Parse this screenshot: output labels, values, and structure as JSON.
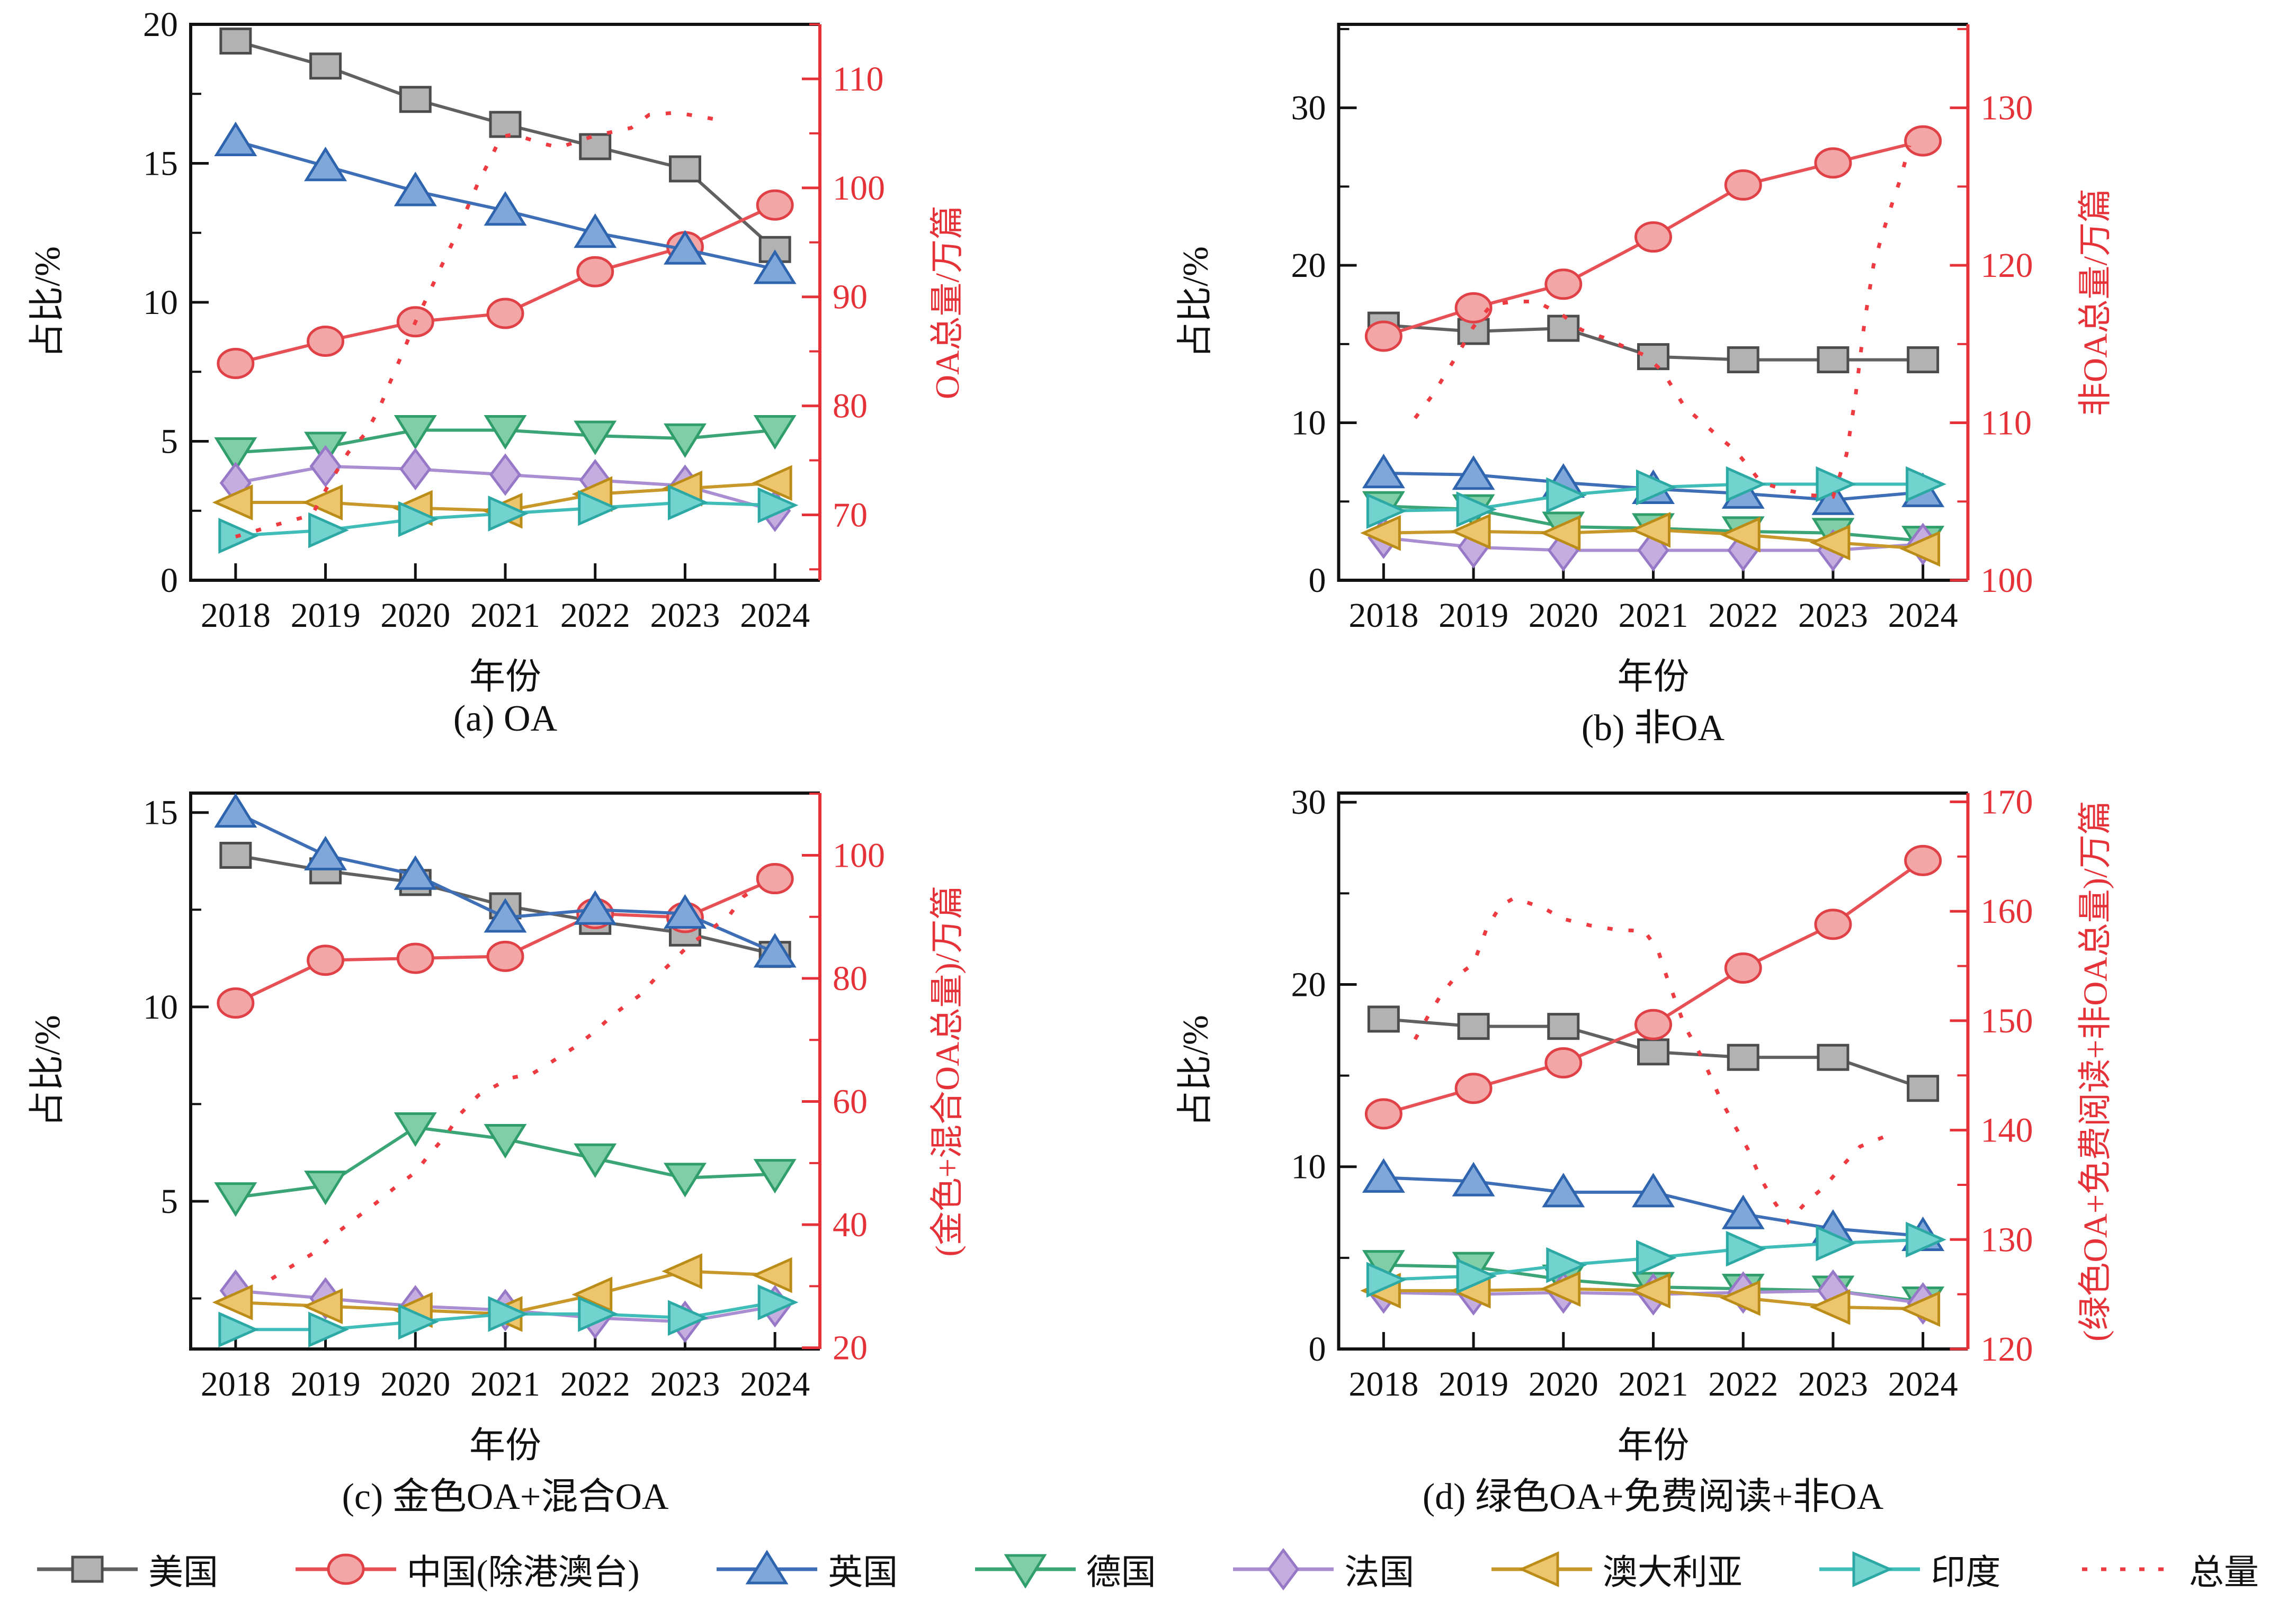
{
  "figure": {
    "background": "#ffffff"
  },
  "axis_common": {
    "x_label": "年份",
    "y_left_label": "占比/%",
    "x_ticks": [
      2018,
      2019,
      2020,
      2021,
      2022,
      2023,
      2024
    ],
    "xlim": [
      2017.5,
      2024.5
    ],
    "tick_color": "#111111",
    "right_axis_color": "#e53238"
  },
  "legend": {
    "position": "bottom",
    "items": [
      {
        "key": "usa",
        "label": "美国"
      },
      {
        "key": "china",
        "label": "中国(除港澳台)"
      },
      {
        "key": "uk",
        "label": "英国"
      },
      {
        "key": "germany",
        "label": "德国"
      },
      {
        "key": "france",
        "label": "法国"
      },
      {
        "key": "australia",
        "label": "澳大利亚"
      },
      {
        "key": "india",
        "label": "印度"
      },
      {
        "key": "total",
        "label": "总量"
      }
    ]
  },
  "styles": {
    "usa": {
      "marker": "square",
      "line": "#616161",
      "fill": "#b2b2b2",
      "edge": "#4c4c4c"
    },
    "china": {
      "marker": "circle",
      "line": "#e75055",
      "fill": "#f3a6a6",
      "edge": "#e04146"
    },
    "uk": {
      "marker": "triangle-up",
      "line": "#3e6eb5",
      "fill": "#80a7d9",
      "edge": "#2e64ae"
    },
    "germany": {
      "marker": "triangle-down",
      "line": "#3ca576",
      "fill": "#80cea8",
      "edge": "#2f9e6b"
    },
    "france": {
      "marker": "diamond",
      "line": "#a98fd1",
      "fill": "#c5addf",
      "edge": "#9678c7"
    },
    "australia": {
      "marker": "triangle-left",
      "line": "#c8982a",
      "fill": "#edc56d",
      "edge": "#bb8c17"
    },
    "india": {
      "marker": "triangle-right",
      "line": "#40bdb9",
      "fill": "#72d2ce",
      "edge": "#2ca9a5"
    },
    "total": {
      "marker": "none",
      "line": "#ee3b41",
      "dash": "dotted"
    }
  },
  "chart_data": [
    {
      "id": "a",
      "type": "line",
      "caption": "(a) OA",
      "xlabel": "年份",
      "ylabel_left": "占比/%",
      "ylabel_right": "OA总量/万篇",
      "x": [
        2018,
        2019,
        2020,
        2021,
        2022,
        2023,
        2024
      ],
      "ylim_left": [
        0,
        20
      ],
      "yticks_left": [
        0,
        5,
        10,
        15,
        20
      ],
      "yminor_left": 2.5,
      "ylim_right": [
        64,
        115
      ],
      "yticks_right": [
        70,
        80,
        90,
        100,
        110
      ],
      "yminor_right": 5,
      "grid": false,
      "series": [
        {
          "key": "usa",
          "name": "美国",
          "values": [
            19.4,
            18.5,
            17.3,
            16.4,
            15.6,
            14.8,
            11.9
          ]
        },
        {
          "key": "china",
          "name": "中国(除港澳台)",
          "values": [
            7.8,
            8.6,
            9.3,
            9.6,
            11.1,
            12.0,
            13.5
          ]
        },
        {
          "key": "uk",
          "name": "英国",
          "values": [
            15.8,
            14.9,
            14.0,
            13.3,
            12.5,
            11.9,
            11.2
          ]
        },
        {
          "key": "germany",
          "name": "德国",
          "values": [
            4.6,
            4.8,
            5.4,
            5.4,
            5.2,
            5.1,
            5.4
          ]
        },
        {
          "key": "france",
          "name": "法国",
          "values": [
            3.5,
            4.1,
            4.0,
            3.8,
            3.6,
            3.4,
            2.5
          ]
        },
        {
          "key": "australia",
          "name": "澳大利亚",
          "values": [
            2.8,
            2.8,
            2.6,
            2.5,
            3.1,
            3.3,
            3.5
          ]
        },
        {
          "key": "india",
          "name": "印度",
          "values": [
            1.6,
            1.8,
            2.2,
            2.4,
            2.6,
            2.8,
            2.7
          ]
        }
      ],
      "total": {
        "key": "total",
        "name": "总量",
        "axis": "right",
        "points": [
          [
            2018.0,
            68.0
          ],
          [
            2018.5,
            69.2
          ],
          [
            2018.85,
            70.0
          ],
          [
            2019.05,
            73.0
          ],
          [
            2019.25,
            75.7
          ],
          [
            2019.45,
            77.5
          ],
          [
            2019.6,
            79.8
          ],
          [
            2019.72,
            82.2
          ],
          [
            2019.86,
            84.9
          ],
          [
            2020.0,
            87.7
          ],
          [
            2020.16,
            90.5
          ],
          [
            2020.3,
            93.0
          ],
          [
            2020.45,
            95.6
          ],
          [
            2020.58,
            98.2
          ],
          [
            2020.7,
            100.5
          ],
          [
            2020.85,
            102.9
          ],
          [
            2020.95,
            104.7
          ],
          [
            2021.1,
            104.9
          ],
          [
            2021.4,
            104.1
          ],
          [
            2021.6,
            103.7
          ],
          [
            2022.0,
            104.8
          ],
          [
            2022.4,
            105.5
          ],
          [
            2022.6,
            106.7
          ],
          [
            2022.9,
            106.9
          ],
          [
            2023.2,
            106.5
          ],
          [
            2023.45,
            106.1
          ]
        ]
      }
    },
    {
      "id": "b",
      "type": "line",
      "caption": "(b) 非OA",
      "xlabel": "年份",
      "ylabel_left": "占比/%",
      "ylabel_right": "非OA总量/万篇",
      "x": [
        2018,
        2019,
        2020,
        2021,
        2022,
        2023,
        2024
      ],
      "ylim_left": [
        0,
        35.3
      ],
      "yticks_left": [
        0,
        10,
        20,
        30
      ],
      "yminor_left": 5,
      "ylim_right": [
        100,
        135.3
      ],
      "yticks_right": [
        100,
        110,
        120,
        130
      ],
      "yminor_right": 5,
      "grid": false,
      "series": [
        {
          "key": "usa",
          "name": "美国",
          "values": [
            16.2,
            15.8,
            16.0,
            14.2,
            14.0,
            14.0,
            14.0
          ]
        },
        {
          "key": "china",
          "name": "中国(除港澳台)",
          "values": [
            15.5,
            17.3,
            18.8,
            21.8,
            25.1,
            26.5,
            27.9
          ]
        },
        {
          "key": "uk",
          "name": "英国",
          "values": [
            6.8,
            6.7,
            6.2,
            5.8,
            5.5,
            5.1,
            5.6
          ]
        },
        {
          "key": "germany",
          "name": "德国",
          "values": [
            4.7,
            4.5,
            3.4,
            3.3,
            3.1,
            3.0,
            2.5
          ]
        },
        {
          "key": "france",
          "name": "法国",
          "values": [
            2.7,
            2.1,
            1.9,
            1.9,
            1.9,
            1.9,
            2.3
          ]
        },
        {
          "key": "australia",
          "name": "澳大利亚",
          "values": [
            3.0,
            3.1,
            3.0,
            3.2,
            2.9,
            2.4,
            2.0
          ]
        },
        {
          "key": "india",
          "name": "印度",
          "values": [
            4.4,
            4.5,
            5.4,
            5.9,
            6.1,
            6.1,
            6.1
          ]
        }
      ],
      "total": {
        "key": "total",
        "name": "总量",
        "axis": "right",
        "points": [
          [
            2018.35,
            110.3
          ],
          [
            2018.55,
            111.8
          ],
          [
            2018.7,
            113.2
          ],
          [
            2018.85,
            114.6
          ],
          [
            2019.0,
            116.1
          ],
          [
            2019.2,
            117.5
          ],
          [
            2019.45,
            117.7
          ],
          [
            2019.7,
            117.7
          ],
          [
            2020.0,
            116.8
          ],
          [
            2020.2,
            115.9
          ],
          [
            2020.45,
            115.4
          ],
          [
            2020.65,
            114.9
          ],
          [
            2020.9,
            114.3
          ],
          [
            2021.1,
            113.3
          ],
          [
            2021.35,
            111.0
          ],
          [
            2021.55,
            110.0
          ],
          [
            2021.75,
            109.0
          ],
          [
            2021.9,
            108.3
          ],
          [
            2022.05,
            107.3
          ],
          [
            2022.2,
            106.2
          ],
          [
            2022.5,
            105.7
          ],
          [
            2022.75,
            105.4
          ],
          [
            2023.0,
            105.3
          ],
          [
            2023.15,
            108.0
          ],
          [
            2023.25,
            111.7
          ],
          [
            2023.35,
            116.4
          ],
          [
            2023.45,
            120.0
          ],
          [
            2023.55,
            122.0
          ],
          [
            2023.65,
            123.8
          ],
          [
            2023.75,
            125.5
          ],
          [
            2023.85,
            127.6
          ]
        ]
      }
    },
    {
      "id": "c",
      "type": "line",
      "caption": "(c) 金色OA+混合OA",
      "xlabel": "年份",
      "ylabel_left": "占比/%",
      "ylabel_right": "(金色+混合OA总量)/万篇",
      "x": [
        2018,
        2019,
        2020,
        2021,
        2022,
        2023,
        2024
      ],
      "ylim_left": [
        1.2,
        15.5
      ],
      "yticks_left": [
        5,
        10,
        15
      ],
      "yminor_left": 2.5,
      "ylim_right": [
        19.8,
        110.1
      ],
      "yticks_right": [
        20,
        40,
        60,
        80,
        100
      ],
      "yminor_right": 10,
      "grid": false,
      "series": [
        {
          "key": "usa",
          "name": "美国",
          "values": [
            13.9,
            13.5,
            13.2,
            12.6,
            12.2,
            11.9,
            11.35
          ]
        },
        {
          "key": "china",
          "name": "中国(除港澳台)",
          "values": [
            10.1,
            11.2,
            11.25,
            11.3,
            12.4,
            12.3,
            13.3
          ]
        },
        {
          "key": "uk",
          "name": "英国",
          "values": [
            15.0,
            13.9,
            13.4,
            12.3,
            12.5,
            12.4,
            11.4
          ]
        },
        {
          "key": "germany",
          "name": "德国",
          "values": [
            5.1,
            5.4,
            6.9,
            6.6,
            6.1,
            5.6,
            5.7
          ]
        },
        {
          "key": "france",
          "name": "法国",
          "values": [
            2.7,
            2.5,
            2.3,
            2.2,
            2.0,
            1.9,
            2.3
          ]
        },
        {
          "key": "australia",
          "name": "澳大利亚",
          "values": [
            2.4,
            2.3,
            2.2,
            2.1,
            2.6,
            3.2,
            3.1
          ]
        },
        {
          "key": "india",
          "name": "印度",
          "values": [
            1.7,
            1.7,
            1.9,
            2.1,
            2.1,
            2.0,
            2.4
          ]
        }
      ],
      "total": {
        "key": "total",
        "name": "总量",
        "axis": "right",
        "points": [
          [
            2018.4,
            31.2
          ],
          [
            2018.63,
            33.3
          ],
          [
            2018.87,
            35.4
          ],
          [
            2019.0,
            37.2
          ],
          [
            2019.12,
            38.6
          ],
          [
            2019.37,
            41.4
          ],
          [
            2019.57,
            43.6
          ],
          [
            2019.77,
            46.0
          ],
          [
            2020.0,
            48.5
          ],
          [
            2020.15,
            51.3
          ],
          [
            2020.34,
            54.5
          ],
          [
            2020.5,
            58.0
          ],
          [
            2020.7,
            61.0
          ],
          [
            2021.05,
            63.8
          ],
          [
            2021.3,
            64.5
          ],
          [
            2021.5,
            66.3
          ],
          [
            2021.77,
            68.8
          ],
          [
            2022.0,
            71.4
          ],
          [
            2022.2,
            74.1
          ],
          [
            2022.5,
            77.3
          ],
          [
            2022.7,
            80.5
          ],
          [
            2022.9,
            83.3
          ],
          [
            2023.05,
            85.5
          ],
          [
            2023.26,
            87.6
          ],
          [
            2023.5,
            90.4
          ],
          [
            2023.65,
            93.3
          ],
          [
            2023.8,
            94.7
          ]
        ]
      }
    },
    {
      "id": "d",
      "type": "line",
      "caption": "(d) 绿色OA+免费阅读+非OA",
      "xlabel": "年份",
      "ylabel_left": "占比/%",
      "ylabel_right": "(绿色OA+免费阅读+非OA总量)/万篇",
      "x": [
        2018,
        2019,
        2020,
        2021,
        2022,
        2023,
        2024
      ],
      "ylim_left": [
        0,
        30.5
      ],
      "yticks_left": [
        0,
        10,
        20,
        30
      ],
      "yminor_left": 5,
      "ylim_right": [
        120,
        170.8
      ],
      "yticks_right": [
        120,
        130,
        140,
        150,
        160,
        170
      ],
      "yminor_right": 5,
      "grid": false,
      "series": [
        {
          "key": "usa",
          "name": "美国",
          "values": [
            18.1,
            17.7,
            17.7,
            16.3,
            16.0,
            16.0,
            14.3
          ]
        },
        {
          "key": "china",
          "name": "中国(除港澳台)",
          "values": [
            12.9,
            14.3,
            15.7,
            17.8,
            20.9,
            23.3,
            26.8
          ]
        },
        {
          "key": "uk",
          "name": "英国",
          "values": [
            9.4,
            9.2,
            8.6,
            8.6,
            7.4,
            6.6,
            6.2
          ]
        },
        {
          "key": "germany",
          "name": "德国",
          "values": [
            4.6,
            4.5,
            3.8,
            3.4,
            3.3,
            3.2,
            2.6
          ]
        },
        {
          "key": "france",
          "name": "法国",
          "values": [
            3.1,
            3.0,
            3.1,
            3.0,
            3.1,
            3.2,
            2.5
          ]
        },
        {
          "key": "australia",
          "name": "澳大利亚",
          "values": [
            3.2,
            3.2,
            3.3,
            3.2,
            2.8,
            2.3,
            2.2
          ]
        },
        {
          "key": "india",
          "name": "印度",
          "values": [
            3.8,
            4.0,
            4.6,
            5.0,
            5.5,
            5.8,
            6.0
          ]
        }
      ],
      "total": {
        "key": "total",
        "name": "总量",
        "axis": "right",
        "points": [
          [
            2018.35,
            148.3
          ],
          [
            2018.5,
            150.5
          ],
          [
            2018.65,
            152.5
          ],
          [
            2018.8,
            154.0
          ],
          [
            2019.0,
            155.2
          ],
          [
            2019.15,
            158.5
          ],
          [
            2019.3,
            160.5
          ],
          [
            2019.45,
            161.2
          ],
          [
            2019.6,
            160.8
          ],
          [
            2019.8,
            160.2
          ],
          [
            2020.0,
            159.3
          ],
          [
            2020.3,
            158.7
          ],
          [
            2020.6,
            158.3
          ],
          [
            2020.9,
            158.2
          ],
          [
            2021.05,
            156.5
          ],
          [
            2021.15,
            154.0
          ],
          [
            2021.35,
            149.5
          ],
          [
            2021.55,
            146.5
          ],
          [
            2021.75,
            142.8
          ],
          [
            2021.9,
            140.5
          ],
          [
            2022.05,
            138.3
          ],
          [
            2022.2,
            135.5
          ],
          [
            2022.35,
            133.4
          ],
          [
            2022.5,
            131.6
          ],
          [
            2022.7,
            133.4
          ],
          [
            2022.9,
            134.8
          ],
          [
            2023.1,
            136.7
          ],
          [
            2023.3,
            138.5
          ],
          [
            2023.6,
            139.5
          ]
        ]
      }
    }
  ]
}
